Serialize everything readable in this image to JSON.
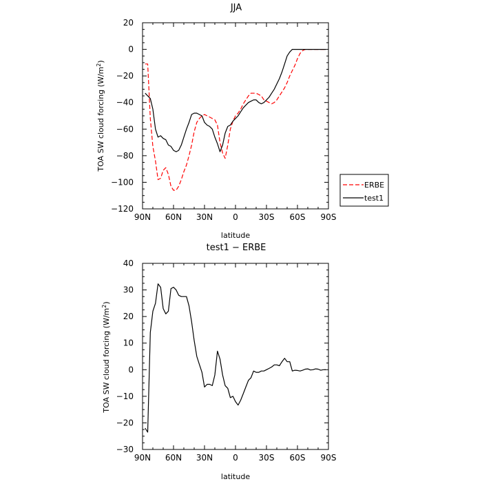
{
  "chart_data": [
    {
      "type": "line",
      "title": "JJA",
      "xlabel": "latitude",
      "ylabel": "TOA SW cloud forcing (W/m",
      "ylabel_sup": "2",
      "ylabel_end": ")",
      "xlim": [
        90,
        -90
      ],
      "ylim": [
        -120,
        20
      ],
      "xticks": [
        90,
        60,
        30,
        0,
        -30,
        -60,
        -90
      ],
      "xtick_labels": [
        "90N",
        "60N",
        "30N",
        "0",
        "30S",
        "60S",
        "90S"
      ],
      "yticks": [
        20,
        0,
        -20,
        -40,
        -60,
        -80,
        -100,
        -120
      ],
      "ytick_labels": [
        "20",
        "0",
        "−20",
        "−40",
        "−60",
        "−80",
        "−100",
        "−120"
      ],
      "legend": "right",
      "series": [
        {
          "name": "ERBE",
          "color": "#ff0000",
          "dash": true,
          "x": [
            87.5,
            85,
            82.5,
            80,
            77.5,
            75,
            72.5,
            70,
            67.5,
            65,
            62.5,
            60,
            57.5,
            55,
            52.5,
            50,
            47.5,
            45,
            42.5,
            40,
            37.5,
            35,
            32.5,
            30,
            27.5,
            25,
            22.5,
            20,
            17.5,
            15,
            12.5,
            10,
            7.5,
            5,
            2.5,
            0,
            -2.5,
            -5,
            -7.5,
            -10,
            -12.5,
            -15,
            -17.5,
            -20,
            -22.5,
            -25,
            -27.5,
            -30,
            -32.5,
            -35,
            -37.5,
            -40,
            -42.5,
            -45,
            -47.5,
            -50,
            -52.5,
            -55,
            -57.5,
            -60,
            -62.5,
            -65,
            -67.5,
            -70,
            -72.5,
            -75,
            -77.5,
            -80,
            -82.5,
            -85,
            -87.5
          ],
          "y": [
            -11,
            -11,
            -52,
            -73,
            -84,
            -98,
            -97,
            -91,
            -89,
            -94,
            -103,
            -106,
            -106,
            -103,
            -98,
            -92,
            -87,
            -80,
            -72,
            -62,
            -55,
            -52,
            -50,
            -49,
            -50,
            -51,
            -52,
            -53,
            -57,
            -70,
            -78,
            -82,
            -72,
            -60,
            -54,
            -50,
            -48,
            -45,
            -41,
            -38,
            -35,
            -33,
            -33,
            -33,
            -34,
            -35,
            -38,
            -39,
            -40,
            -41,
            -40,
            -38,
            -35,
            -32,
            -29,
            -25,
            -20,
            -16,
            -12,
            -7,
            -3,
            -1,
            0,
            0,
            0,
            0,
            0,
            0,
            0,
            0,
            0
          ]
        },
        {
          "name": "test1",
          "color": "#000000",
          "dash": false,
          "x": [
            87.5,
            85,
            82.5,
            80,
            77.5,
            75,
            72.5,
            70,
            67.5,
            65,
            62.5,
            60,
            57.5,
            55,
            52.5,
            50,
            47.5,
            45,
            42.5,
            40,
            37.5,
            35,
            32.5,
            30,
            27.5,
            25,
            22.5,
            20,
            17.5,
            15,
            12.5,
            10,
            7.5,
            5,
            2.5,
            0,
            -2.5,
            -5,
            -7.5,
            -10,
            -12.5,
            -15,
            -17.5,
            -20,
            -22.5,
            -25,
            -27.5,
            -30,
            -32.5,
            -35,
            -37.5,
            -40,
            -42.5,
            -45,
            -47.5,
            -50,
            -52.5,
            -55,
            -57.5,
            -60,
            -62.5,
            -65,
            -67.5,
            -70,
            -72.5,
            -75,
            -77.5,
            -80,
            -82.5,
            -85,
            -87.5
          ],
          "y": [
            -33,
            -35,
            -37,
            -45,
            -60,
            -66,
            -65,
            -67,
            -68,
            -72,
            -73,
            -76,
            -77,
            -76,
            -72,
            -66,
            -60,
            -55,
            -49,
            -48,
            -48,
            -49,
            -50,
            -55,
            -57,
            -58,
            -60,
            -66,
            -71,
            -77,
            -72,
            -63,
            -58,
            -57,
            -54,
            -52,
            -50,
            -47,
            -44,
            -42,
            -40,
            -39,
            -38,
            -38,
            -40,
            -41,
            -40,
            -38,
            -36,
            -33,
            -30,
            -26,
            -22,
            -17,
            -11,
            -5,
            -2,
            0,
            0,
            0,
            0,
            0,
            0,
            0,
            0,
            0,
            0,
            0,
            0,
            0,
            0
          ]
        }
      ]
    },
    {
      "type": "line",
      "title": "test1 − ERBE",
      "xlabel": "latitude",
      "ylabel": "TOA SW cloud forcing (W/m",
      "ylabel_sup": "2",
      "ylabel_end": ")",
      "xlim": [
        90,
        -90
      ],
      "ylim": [
        -30,
        40
      ],
      "xticks": [
        90,
        60,
        30,
        0,
        -30,
        -60,
        -90
      ],
      "xtick_labels": [
        "90N",
        "60N",
        "30N",
        "0",
        "30S",
        "60S",
        "90S"
      ],
      "yticks": [
        40,
        30,
        20,
        10,
        0,
        -10,
        -20,
        -30
      ],
      "ytick_labels": [
        "40",
        "30",
        "20",
        "10",
        "0",
        "−10",
        "−20",
        "−30"
      ],
      "series": [
        {
          "color": "#000000",
          "dash": false,
          "x": [
            87.5,
            85,
            82.5,
            80,
            77.5,
            75,
            72.5,
            70,
            67.5,
            65,
            62.5,
            60,
            57.5,
            55,
            52.5,
            50,
            47.5,
            45,
            42.5,
            40,
            37.5,
            35,
            32.5,
            30,
            27.5,
            25,
            22.5,
            20,
            17.5,
            15,
            12.5,
            10,
            7.5,
            5,
            2.5,
            0,
            -2.5,
            -5,
            -7.5,
            -10,
            -12.5,
            -15,
            -17.5,
            -20,
            -22.5,
            -25,
            -27.5,
            -30,
            -32.5,
            -35,
            -37.5,
            -40,
            -42.5,
            -45,
            -47.5,
            -50,
            -52.5,
            -55,
            -57.5,
            -60,
            -62.5,
            -65,
            -67.5,
            -70,
            -72.5,
            -75,
            -77.5,
            -80,
            -82.5,
            -85,
            -87.5
          ],
          "y": [
            -22,
            -23.5,
            14,
            22,
            25,
            32.3,
            31,
            23,
            21,
            22,
            30.5,
            31,
            30,
            28,
            27.5,
            27.5,
            27.5,
            24,
            18,
            11,
            5,
            2,
            -1,
            -6.5,
            -5.5,
            -5.5,
            -6,
            -2,
            7,
            4,
            -2,
            -6,
            -7,
            -10.5,
            -10,
            -12,
            -13.3,
            -11.5,
            -9,
            -6.5,
            -4,
            -3,
            -0.5,
            -1,
            -1,
            -0.5,
            -0.5,
            0,
            0.5,
            1,
            1.8,
            1.8,
            1.5,
            3,
            4.3,
            3,
            3,
            -0.5,
            -0.2,
            -0.3,
            -0.5,
            -0.2,
            0.2,
            0.3,
            -0.1,
            0,
            0.3,
            0.2,
            -0.2,
            0,
            0
          ]
        }
      ]
    }
  ]
}
